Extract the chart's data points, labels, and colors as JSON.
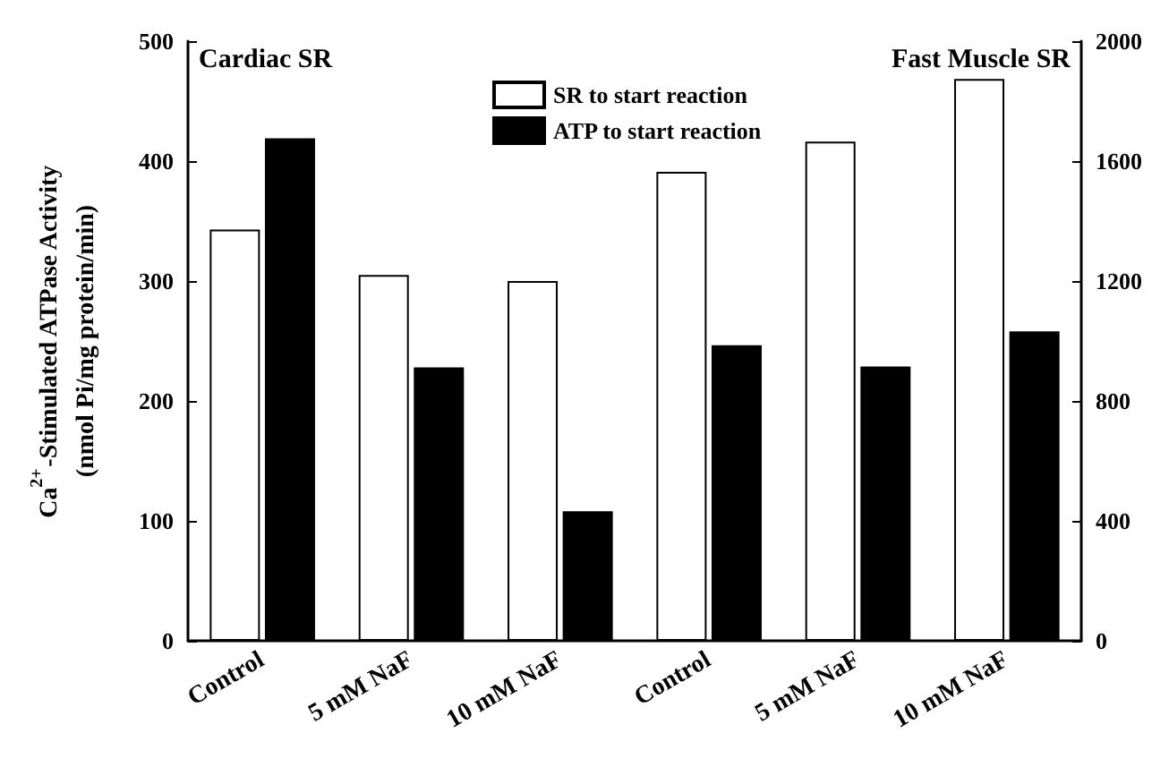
{
  "chart_data": {
    "type": "bar",
    "ylabel": "Ca$^{2+}$-Stimulated ATPase Activity\n(nmol Pi/mg protein/min)",
    "annotations": [
      "Cardiac SR",
      "Fast Muscle SR"
    ],
    "categories": [
      "Control",
      "5 mM NaF",
      "10 mM NaF",
      "Control",
      "5 mM NaF",
      "10 mM NaF"
    ],
    "series": [
      {
        "name": "SR to start reaction",
        "color": "#ffffff",
        "values": [
          343,
          305,
          300,
          null,
          null,
          null
        ]
      },
      {
        "name": "ATP to start reaction",
        "color": "#000000",
        "values": [
          419,
          228,
          108,
          null,
          null,
          null
        ]
      },
      {
        "color": "#ffffff",
        "axis": "y2",
        "values": [
          null,
          null,
          null,
          1564,
          1665,
          1874
        ]
      },
      {
        "color": "#000000",
        "axis": "y2",
        "values": [
          null,
          null,
          null,
          986,
          915,
          1032
        ]
      }
    ],
    "ylim": [
      0,
      500
    ],
    "yticks": [
      0,
      100,
      200,
      300,
      400,
      500
    ],
    "y2lim": [
      0,
      2000
    ],
    "y2ticks": [
      0,
      400,
      800,
      1200,
      1600,
      2000
    ],
    "grid": false,
    "legend": "top"
  }
}
